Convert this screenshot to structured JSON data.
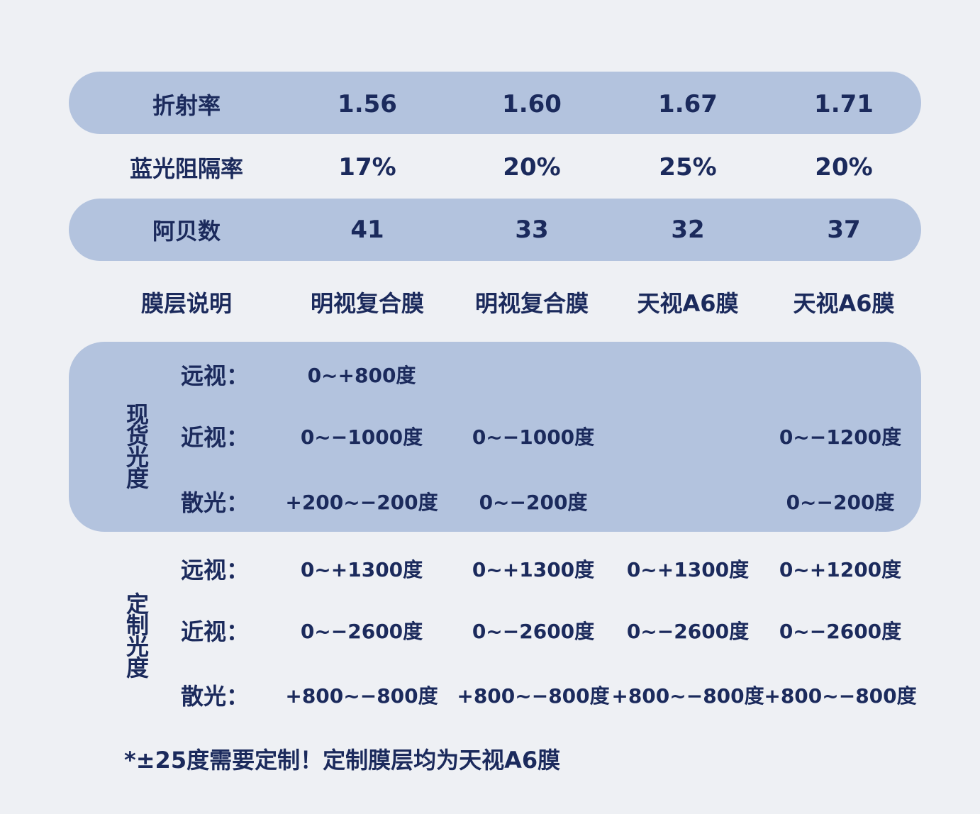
{
  "table": {
    "rows": [
      {
        "label": "折射率",
        "values": [
          "1.56",
          "1.60",
          "1.67",
          "1.71"
        ]
      },
      {
        "label": "蓝光阻隔率",
        "values": [
          "17%",
          "20%",
          "25%",
          "20%"
        ]
      },
      {
        "label": "阿贝数",
        "values": [
          "41",
          "33",
          "32",
          "37"
        ]
      },
      {
        "label": "膜层说明",
        "values": [
          "明视复合膜",
          "明视复合膜",
          "天视A6膜",
          "天视A6膜"
        ]
      }
    ]
  },
  "sections": [
    {
      "title": "现货光度",
      "rows": [
        {
          "label": "远视：",
          "values": [
            "0~+800度",
            null,
            null,
            null
          ]
        },
        {
          "label": "近视：",
          "values": [
            "0~−1000度",
            "0~−1000度",
            null,
            "0~−1200度"
          ]
        },
        {
          "label": "散光：",
          "values": [
            "+200~−200度",
            "0~−200度",
            null,
            "0~−200度"
          ]
        }
      ]
    },
    {
      "title": "定制光度",
      "rows": [
        {
          "label": "远视：",
          "values": [
            "0~+1300度",
            "0~+1300度",
            "0~+1300度",
            "0~+1200度"
          ]
        },
        {
          "label": "近视：",
          "values": [
            "0~−2600度",
            "0~−2600度",
            "0~−2600度",
            "0~−2600度"
          ]
        },
        {
          "label": "散光：",
          "values": [
            "+800~−800度",
            "+800~−800度",
            "+800~−800度",
            "+800~−800度"
          ]
        }
      ]
    }
  ],
  "footnote": "*±25度需要定制！定制膜层均为天视A6膜"
}
